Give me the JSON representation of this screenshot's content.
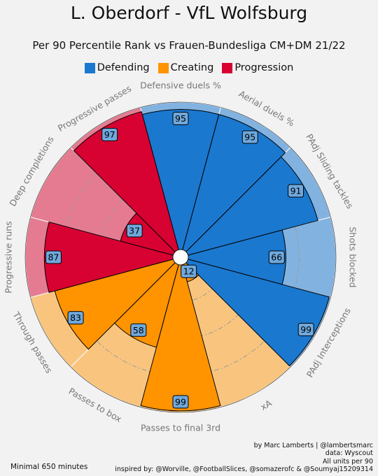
{
  "header": {
    "title": "L. Oberdorf - VfL Wolfsburg",
    "subtitle": "Per 90 Percentile Rank vs Frauen-Bundesliga CM+DM 21/22"
  },
  "legend": [
    {
      "label": "Defending",
      "color": "#1a78cf"
    },
    {
      "label": "Creating",
      "color": "#ff9300"
    },
    {
      "label": "Progression",
      "color": "#d70232"
    }
  ],
  "chart_data": {
    "type": "pie",
    "series_type": "percentile radar (polar bar)",
    "rlim": [
      0,
      100
    ],
    "grid": true,
    "categories": [
      "Defensive duels %",
      "Aerial duels  %",
      "PAdj Sliding tackles",
      "Shots blocked",
      "PAdj Interceptions",
      "xA",
      "Passes to final 3rd",
      "Passes to box",
      "Through passes",
      "Progressive runs",
      "Deep completions",
      "Progressive passes"
    ],
    "values": [
      95,
      95,
      91,
      66,
      99,
      12,
      99,
      58,
      83,
      87,
      37,
      97
    ],
    "groups": [
      "Defending",
      "Defending",
      "Defending",
      "Defending",
      "Defending",
      "Creating",
      "Creating",
      "Creating",
      "Creating",
      "Progression",
      "Progression",
      "Progression"
    ],
    "group_colors": {
      "Defending": {
        "main": "#1a78cf",
        "light": "#82b2e0"
      },
      "Creating": {
        "main": "#ff9300",
        "light": "#f9c57e"
      },
      "Progression": {
        "main": "#d70232",
        "light": "#e57b91"
      }
    },
    "value_box_color": "#6fa8dc"
  },
  "footer": {
    "credit_lines": [
      "by Marc Lamberts | @lambertsmarc",
      "data: Wyscout",
      "All units per 90",
      "inspired by: @Worville, @FootballSlices, @somazerofc & @Soumyaj15209314"
    ],
    "minimal": "Minimal 650 minutes"
  }
}
